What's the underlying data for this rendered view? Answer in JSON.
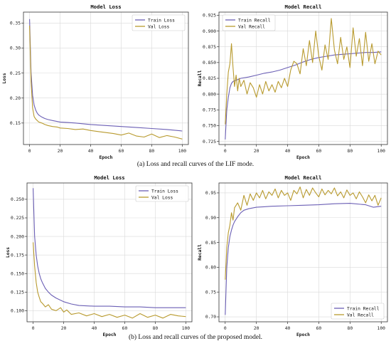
{
  "captions": {
    "a": "(a) Loss and recall curves of the LIF mode.",
    "b": "(b)  Loss and recall curves of the proposed model."
  },
  "colors": {
    "train": "#6b5fb5",
    "val": "#b89a2e"
  },
  "chart_data": [
    {
      "type": "line",
      "title": "Model Loss",
      "xlabel": "Epoch",
      "ylabel": "Loss",
      "xlim": [
        -4,
        104
      ],
      "ylim": [
        0.107,
        0.372
      ],
      "xticks": [
        0,
        20,
        40,
        60,
        80,
        100
      ],
      "yticks": [
        0.15,
        0.2,
        0.25,
        0.3,
        0.35
      ],
      "ytick_labels": [
        "0.15",
        "0.20",
        "0.25",
        "0.30",
        "0.35"
      ],
      "grid": true,
      "legend": "top-right",
      "series": [
        {
          "name": "Train Loss",
          "x": [
            0,
            1,
            2,
            3,
            4,
            5,
            6,
            8,
            10,
            12,
            15,
            20,
            25,
            30,
            40,
            50,
            60,
            70,
            80,
            90,
            100
          ],
          "y": [
            0.358,
            0.25,
            0.205,
            0.186,
            0.176,
            0.17,
            0.166,
            0.162,
            0.159,
            0.157,
            0.155,
            0.152,
            0.151,
            0.15,
            0.147,
            0.145,
            0.143,
            0.141,
            0.139,
            0.137,
            0.134
          ]
        },
        {
          "name": "Val Loss",
          "x": [
            0,
            1,
            2,
            3,
            4,
            6,
            8,
            10,
            12,
            15,
            18,
            20,
            25,
            30,
            35,
            40,
            45,
            50,
            55,
            60,
            65,
            70,
            75,
            80,
            85,
            90,
            95,
            100
          ],
          "y": [
            0.345,
            0.232,
            0.18,
            0.163,
            0.158,
            0.152,
            0.15,
            0.147,
            0.145,
            0.143,
            0.142,
            0.14,
            0.139,
            0.137,
            0.138,
            0.135,
            0.133,
            0.131,
            0.129,
            0.126,
            0.13,
            0.124,
            0.122,
            0.128,
            0.121,
            0.125,
            0.122,
            0.118
          ]
        }
      ]
    },
    {
      "type": "line",
      "title": "Model Recall",
      "xlabel": "Epoch",
      "ylabel": "Recall",
      "xlim": [
        -4,
        104
      ],
      "ylim": [
        0.72,
        0.93
      ],
      "xticks": [
        0,
        20,
        40,
        60,
        80,
        100
      ],
      "yticks": [
        0.725,
        0.75,
        0.775,
        0.8,
        0.825,
        0.85,
        0.875,
        0.9,
        0.925
      ],
      "ytick_labels": [
        "0.725",
        "0.750",
        "0.775",
        "0.800",
        "0.825",
        "0.850",
        "0.875",
        "0.900",
        "0.925"
      ],
      "grid": true,
      "legend": "top-left",
      "series": [
        {
          "name": "Train Recall",
          "x": [
            0,
            1,
            2,
            3,
            4,
            5,
            6,
            8,
            10,
            15,
            20,
            25,
            30,
            35,
            40,
            45,
            50,
            55,
            60,
            65,
            70,
            75,
            80,
            85,
            90,
            95,
            100
          ],
          "y": [
            0.728,
            0.775,
            0.795,
            0.81,
            0.817,
            0.82,
            0.821,
            0.823,
            0.825,
            0.827,
            0.83,
            0.833,
            0.835,
            0.838,
            0.842,
            0.846,
            0.851,
            0.855,
            0.858,
            0.86,
            0.862,
            0.863,
            0.864,
            0.865,
            0.866,
            0.866,
            0.867
          ]
        },
        {
          "name": "Val Recall",
          "x": [
            0,
            1,
            2,
            3,
            4,
            5,
            6,
            7,
            8,
            9,
            10,
            12,
            14,
            16,
            18,
            20,
            22,
            24,
            26,
            28,
            30,
            32,
            34,
            36,
            38,
            40,
            42,
            44,
            46,
            48,
            50,
            52,
            54,
            56,
            58,
            60,
            62,
            64,
            66,
            68,
            70,
            72,
            74,
            76,
            78,
            80,
            82,
            84,
            86,
            88,
            90,
            92,
            94,
            96,
            98,
            100
          ],
          "y": [
            0.752,
            0.8,
            0.835,
            0.848,
            0.88,
            0.842,
            0.812,
            0.83,
            0.805,
            0.825,
            0.812,
            0.822,
            0.8,
            0.818,
            0.81,
            0.795,
            0.815,
            0.8,
            0.82,
            0.805,
            0.815,
            0.803,
            0.82,
            0.81,
            0.825,
            0.812,
            0.838,
            0.852,
            0.848,
            0.832,
            0.872,
            0.845,
            0.885,
            0.85,
            0.9,
            0.86,
            0.838,
            0.878,
            0.855,
            0.92,
            0.87,
            0.848,
            0.89,
            0.855,
            0.875,
            0.842,
            0.905,
            0.86,
            0.888,
            0.845,
            0.898,
            0.852,
            0.88,
            0.848,
            0.868,
            0.862
          ]
        }
      ]
    },
    {
      "type": "line",
      "title": "Model Loss",
      "xlabel": "Epoch",
      "ylabel": "Loss",
      "xlim": [
        -4,
        104
      ],
      "ylim": [
        0.085,
        0.272
      ],
      "xticks": [
        0,
        20,
        40,
        60,
        80,
        100
      ],
      "yticks": [
        0.1,
        0.125,
        0.15,
        0.175,
        0.2,
        0.225,
        0.25
      ],
      "ytick_labels": [
        "0.100",
        "0.125",
        "0.150",
        "0.175",
        "0.200",
        "0.225",
        "0.250"
      ],
      "grid": true,
      "legend": "top-right",
      "series": [
        {
          "name": "Train Loss",
          "x": [
            0,
            1,
            2,
            3,
            4,
            5,
            6,
            8,
            10,
            12,
            15,
            18,
            20,
            25,
            30,
            40,
            50,
            60,
            70,
            80,
            90,
            100
          ],
          "y": [
            0.265,
            0.2,
            0.175,
            0.16,
            0.15,
            0.143,
            0.138,
            0.13,
            0.125,
            0.121,
            0.117,
            0.114,
            0.112,
            0.109,
            0.107,
            0.106,
            0.106,
            0.105,
            0.105,
            0.104,
            0.104,
            0.104
          ]
        },
        {
          "name": "Val Loss",
          "x": [
            0,
            1,
            2,
            3,
            4,
            5,
            6,
            8,
            10,
            12,
            15,
            18,
            20,
            22,
            25,
            30,
            35,
            40,
            45,
            50,
            55,
            60,
            65,
            70,
            75,
            80,
            85,
            90,
            95,
            100
          ],
          "y": [
            0.192,
            0.16,
            0.138,
            0.125,
            0.118,
            0.112,
            0.11,
            0.105,
            0.108,
            0.102,
            0.1,
            0.104,
            0.098,
            0.101,
            0.095,
            0.097,
            0.093,
            0.096,
            0.092,
            0.095,
            0.091,
            0.094,
            0.09,
            0.096,
            0.091,
            0.094,
            0.09,
            0.095,
            0.093,
            0.092
          ]
        }
      ]
    },
    {
      "type": "line",
      "title": "Model Recall",
      "xlabel": "Epoch",
      "ylabel": "Recall",
      "xlim": [
        -4,
        104
      ],
      "ylim": [
        0.69,
        0.97
      ],
      "xticks": [
        0,
        20,
        40,
        60,
        80,
        100
      ],
      "yticks": [
        0.7,
        0.75,
        0.8,
        0.85,
        0.9,
        0.95
      ],
      "ytick_labels": [
        "0.70",
        "0.75",
        "0.80",
        "0.85",
        "0.90",
        "0.95"
      ],
      "grid": true,
      "legend": "bottom-right",
      "series": [
        {
          "name": "Train Recall",
          "x": [
            0,
            1,
            2,
            3,
            4,
            5,
            6,
            8,
            10,
            12,
            15,
            20,
            25,
            30,
            40,
            50,
            60,
            70,
            80,
            90,
            95,
            100
          ],
          "y": [
            0.704,
            0.8,
            0.84,
            0.862,
            0.875,
            0.885,
            0.892,
            0.902,
            0.91,
            0.915,
            0.918,
            0.921,
            0.922,
            0.923,
            0.924,
            0.925,
            0.926,
            0.928,
            0.929,
            0.926,
            0.921,
            0.923
          ]
        },
        {
          "name": "Val Recall",
          "x": [
            0,
            1,
            2,
            3,
            4,
            5,
            6,
            8,
            10,
            12,
            14,
            16,
            18,
            20,
            22,
            24,
            26,
            28,
            30,
            32,
            34,
            36,
            38,
            40,
            42,
            44,
            46,
            48,
            50,
            52,
            54,
            56,
            58,
            60,
            62,
            64,
            66,
            68,
            70,
            72,
            74,
            76,
            78,
            80,
            82,
            84,
            86,
            88,
            90,
            92,
            94,
            96,
            98,
            100
          ],
          "y": [
            0.775,
            0.84,
            0.87,
            0.885,
            0.91,
            0.895,
            0.92,
            0.93,
            0.915,
            0.945,
            0.925,
            0.948,
            0.935,
            0.95,
            0.94,
            0.955,
            0.938,
            0.952,
            0.945,
            0.958,
            0.94,
            0.955,
            0.945,
            0.95,
            0.935,
            0.955,
            0.948,
            0.962,
            0.94,
            0.957,
            0.945,
            0.96,
            0.95,
            0.942,
            0.958,
            0.946,
            0.955,
            0.948,
            0.96,
            0.944,
            0.952,
            0.94,
            0.956,
            0.945,
            0.95,
            0.938,
            0.952,
            0.942,
            0.93,
            0.946,
            0.934,
            0.945,
            0.925,
            0.94
          ]
        }
      ]
    }
  ]
}
